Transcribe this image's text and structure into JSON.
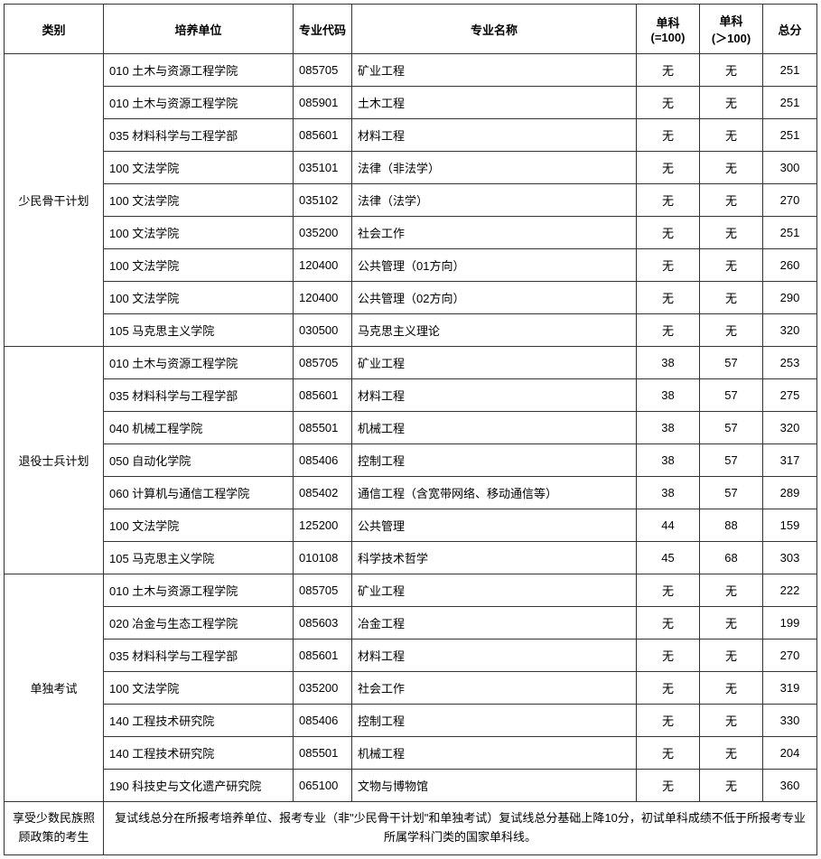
{
  "headers": {
    "category": "类别",
    "unit": "培养单位",
    "code": "专业代码",
    "major": "专业名称",
    "score1_line1": "单科",
    "score1_line2": "(=100)",
    "score2_line1": "单科",
    "score2_line2": "(＞100)",
    "total": "总分"
  },
  "groups": [
    {
      "category": "少民骨干计划",
      "rows": [
        {
          "unit": "010 土木与资源工程学院",
          "code": "085705",
          "major": "矿业工程",
          "s1": "无",
          "s2": "无",
          "total": "251"
        },
        {
          "unit": "010 土木与资源工程学院",
          "code": "085901",
          "major": "土木工程",
          "s1": "无",
          "s2": "无",
          "total": "251"
        },
        {
          "unit": "035 材料科学与工程学部",
          "code": "085601",
          "major": "材料工程",
          "s1": "无",
          "s2": "无",
          "total": "251"
        },
        {
          "unit": "100 文法学院",
          "code": "035101",
          "major": "法律（非法学）",
          "s1": "无",
          "s2": "无",
          "total": "300"
        },
        {
          "unit": "100 文法学院",
          "code": "035102",
          "major": "法律（法学）",
          "s1": "无",
          "s2": "无",
          "total": "270"
        },
        {
          "unit": "100 文法学院",
          "code": "035200",
          "major": "社会工作",
          "s1": "无",
          "s2": "无",
          "total": "251"
        },
        {
          "unit": "100 文法学院",
          "code": "120400",
          "major": "公共管理（01方向）",
          "s1": "无",
          "s2": "无",
          "total": "260"
        },
        {
          "unit": "100 文法学院",
          "code": "120400",
          "major": "公共管理（02方向）",
          "s1": "无",
          "s2": "无",
          "total": "290"
        },
        {
          "unit": "105 马克思主义学院",
          "code": "030500",
          "major": "马克思主义理论",
          "s1": "无",
          "s2": "无",
          "total": "320"
        }
      ]
    },
    {
      "category": "退役士兵计划",
      "rows": [
        {
          "unit": "010 土木与资源工程学院",
          "code": "085705",
          "major": "矿业工程",
          "s1": "38",
          "s2": "57",
          "total": "253"
        },
        {
          "unit": "035 材料科学与工程学部",
          "code": "085601",
          "major": "材料工程",
          "s1": "38",
          "s2": "57",
          "total": "275"
        },
        {
          "unit": "040 机械工程学院",
          "code": "085501",
          "major": "机械工程",
          "s1": "38",
          "s2": "57",
          "total": "320"
        },
        {
          "unit": "050 自动化学院",
          "code": "085406",
          "major": "控制工程",
          "s1": "38",
          "s2": "57",
          "total": "317"
        },
        {
          "unit": "060 计算机与通信工程学院",
          "code": "085402",
          "major": "通信工程（含宽带网络、移动通信等）",
          "s1": "38",
          "s2": "57",
          "total": "289"
        },
        {
          "unit": "100 文法学院",
          "code": "125200",
          "major": "公共管理",
          "s1": "44",
          "s2": "88",
          "total": "159"
        },
        {
          "unit": "105 马克思主义学院",
          "code": "010108",
          "major": "科学技术哲学",
          "s1": "45",
          "s2": "68",
          "total": "303"
        }
      ]
    },
    {
      "category": "单独考试",
      "rows": [
        {
          "unit": "010 土木与资源工程学院",
          "code": "085705",
          "major": "矿业工程",
          "s1": "无",
          "s2": "无",
          "total": "222"
        },
        {
          "unit": "020 冶金与生态工程学院",
          "code": "085603",
          "major": "冶金工程",
          "s1": "无",
          "s2": "无",
          "total": "199"
        },
        {
          "unit": "035 材料科学与工程学部",
          "code": "085601",
          "major": "材料工程",
          "s1": "无",
          "s2": "无",
          "total": "270"
        },
        {
          "unit": "100 文法学院",
          "code": "035200",
          "major": "社会工作",
          "s1": "无",
          "s2": "无",
          "total": "319"
        },
        {
          "unit": "140 工程技术研究院",
          "code": "085406",
          "major": "控制工程",
          "s1": "无",
          "s2": "无",
          "total": "330"
        },
        {
          "unit": "140 工程技术研究院",
          "code": "085501",
          "major": "机械工程",
          "s1": "无",
          "s2": "无",
          "total": "204"
        },
        {
          "unit": "190 科技史与文化遗产研究院",
          "code": "065100",
          "major": "文物与博物馆",
          "s1": "无",
          "s2": "无",
          "total": "360"
        }
      ]
    }
  ],
  "policy": {
    "label": "享受少数民族照顾政策的考生",
    "text": "复试线总分在所报考培养单位、报考专业（非\"少民骨干计划\"和单独考试）复试线总分基础上降10分，初试单科成绩不低于所报考专业所属学科门类的国家单科线。"
  }
}
